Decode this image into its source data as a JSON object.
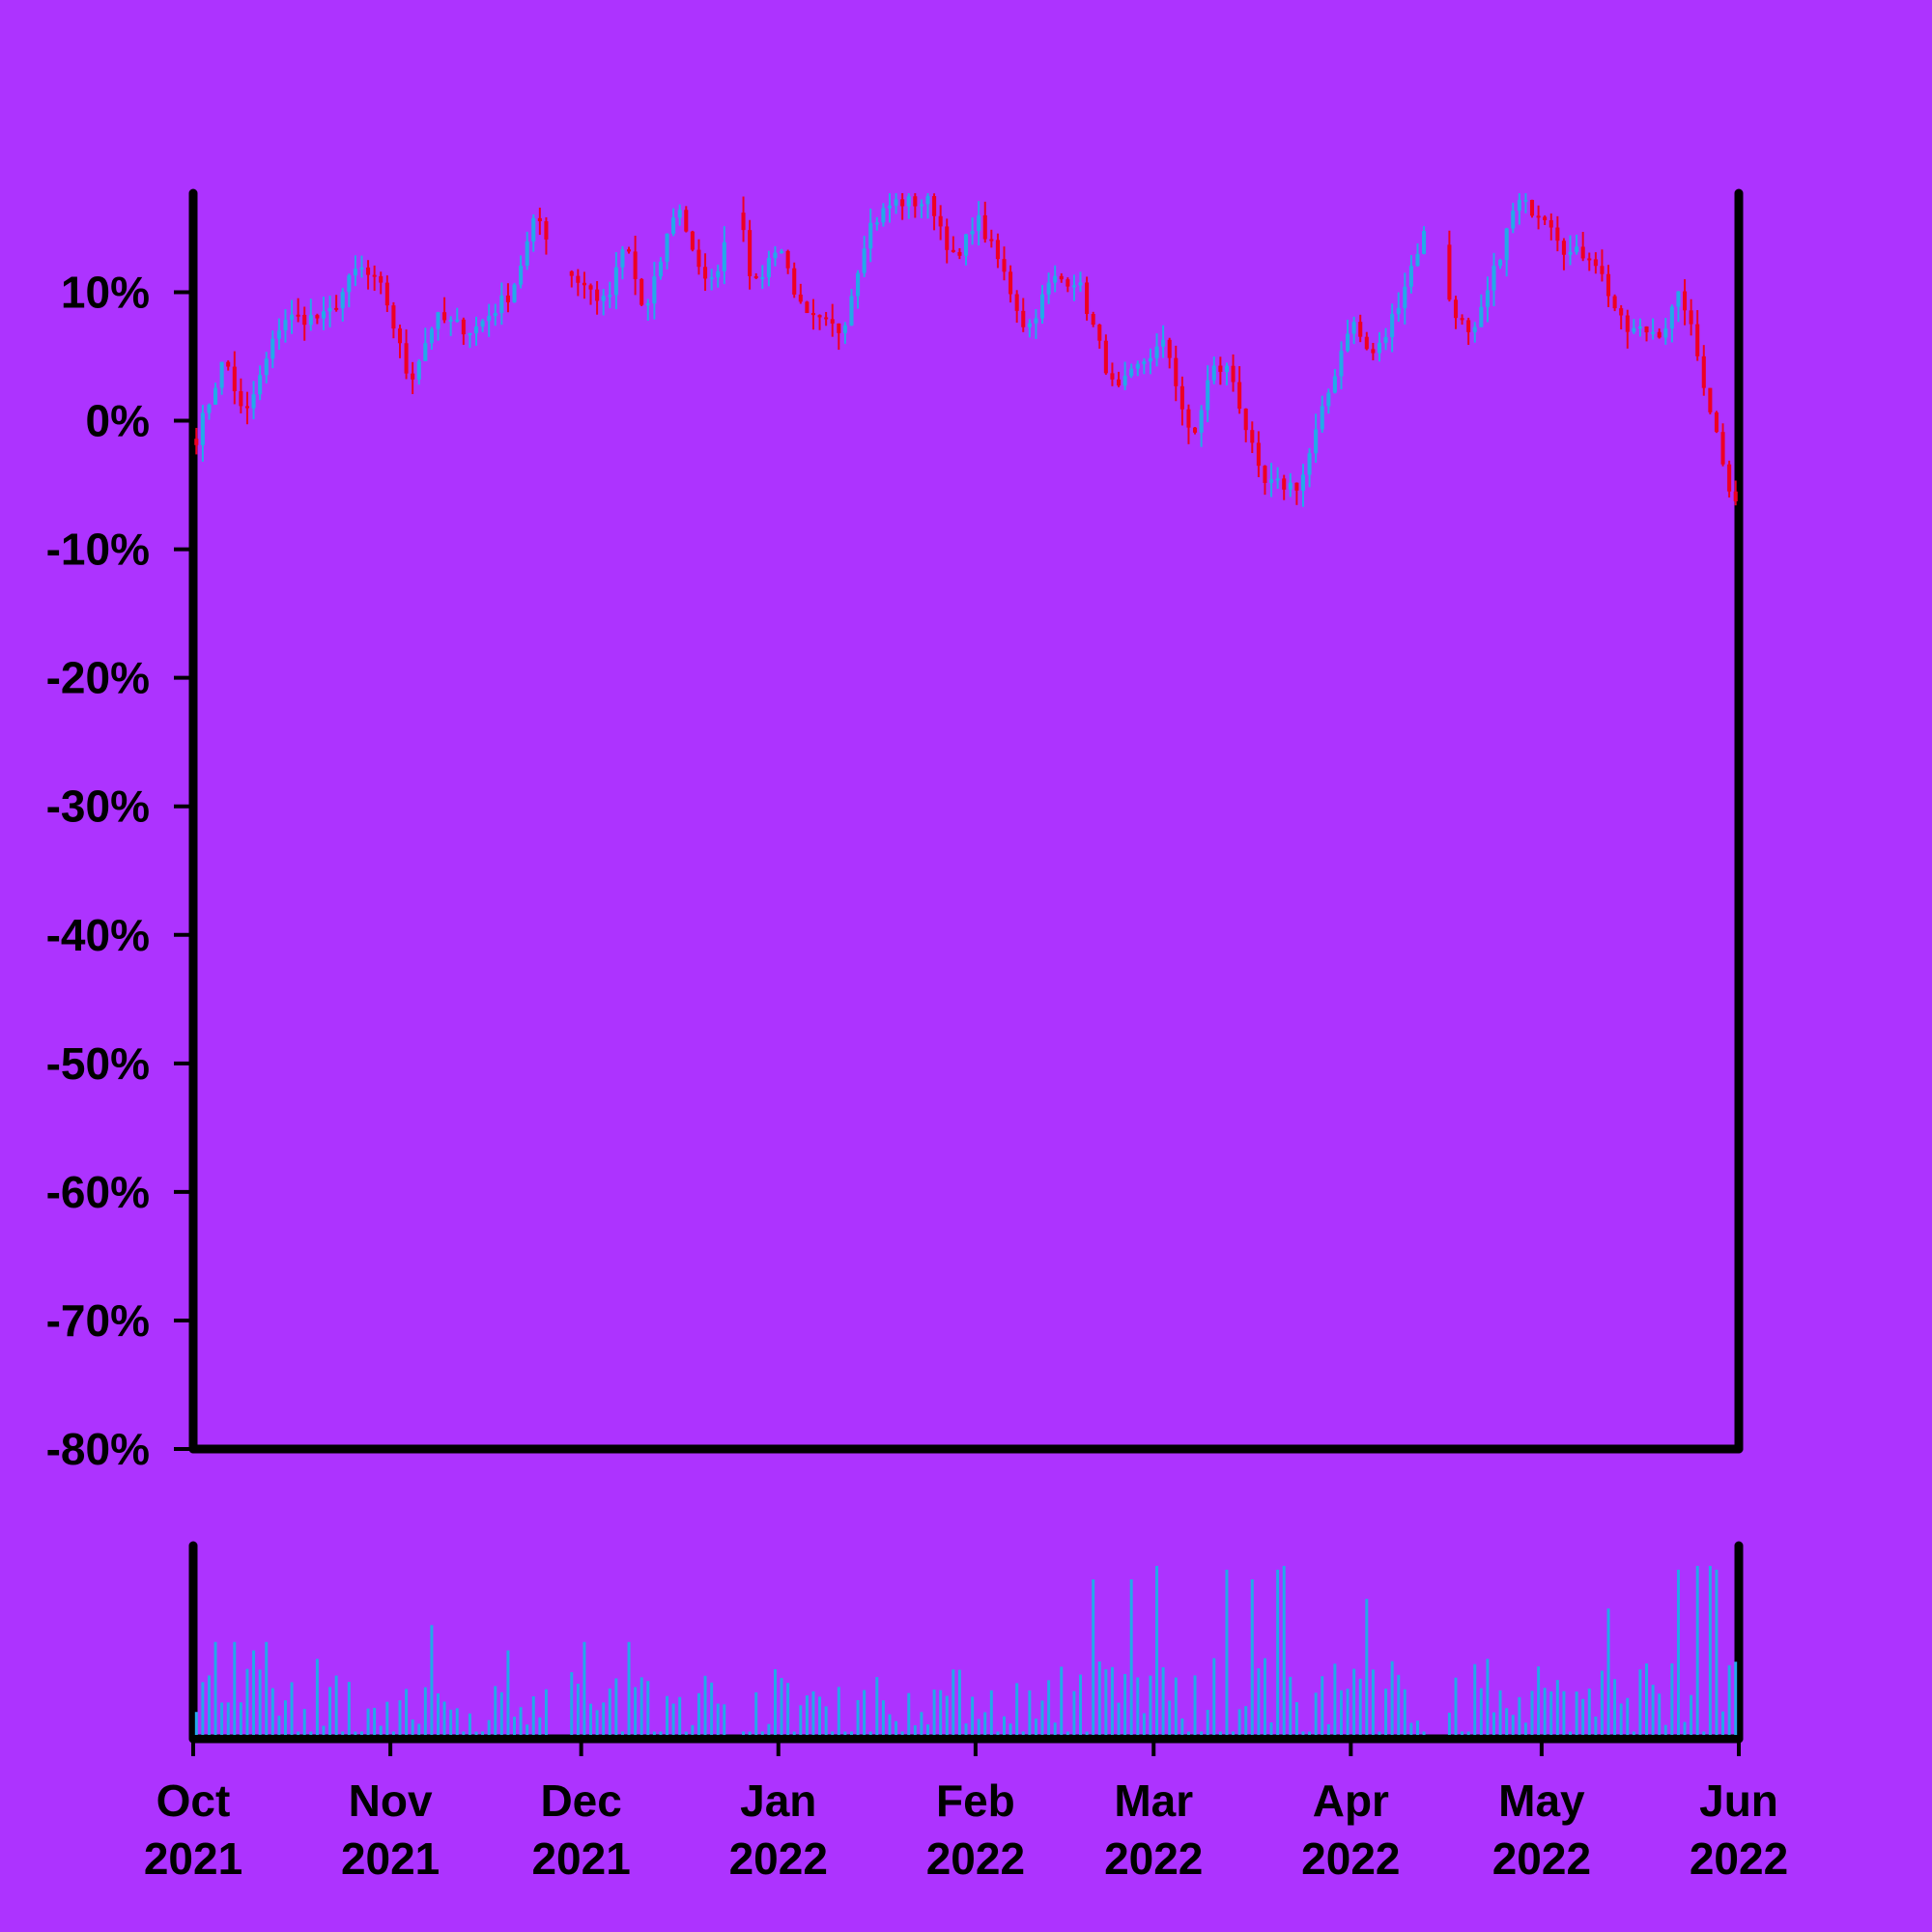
{
  "colors": {
    "background": "#ad33ff",
    "axis": "#000000",
    "up": "#22aae8",
    "down": "#ee0022",
    "volume": "#22aae8"
  },
  "chart_data": {
    "type": "candlestick",
    "price_axis": {
      "ylim": [
        -80,
        17.7
      ],
      "ticks": [
        10,
        0,
        -10,
        -20,
        -30,
        -40,
        -50,
        -60,
        -70,
        -80
      ],
      "tick_labels": [
        "10%",
        "0%",
        "-10%",
        "-20%",
        "-30%",
        "-40%",
        "-50%",
        "-60%",
        "-70%",
        "-80%"
      ]
    },
    "x_axis": {
      "range": [
        "2021-10-01",
        "2022-06-01"
      ],
      "ticks": [
        {
          "date": "2021-10-01",
          "month": "Oct",
          "year": "2021"
        },
        {
          "date": "2021-11-01",
          "month": "Nov",
          "year": "2021"
        },
        {
          "date": "2021-12-01",
          "month": "Dec",
          "year": "2021"
        },
        {
          "date": "2022-01-01",
          "month": "Jan",
          "year": "2022"
        },
        {
          "date": "2022-02-01",
          "month": "Feb",
          "year": "2022"
        },
        {
          "date": "2022-03-01",
          "month": "Mar",
          "year": "2022"
        },
        {
          "date": "2022-04-01",
          "month": "Apr",
          "year": "2022"
        },
        {
          "date": "2022-05-01",
          "month": "May",
          "year": "2022"
        },
        {
          "date": "2022-06-01",
          "month": "Jun",
          "year": "2022"
        }
      ]
    },
    "close_path": [
      [
        "2021-10-01",
        -2
      ],
      [
        "2021-10-06",
        5
      ],
      [
        "2021-10-09",
        0
      ],
      [
        "2021-10-15",
        8
      ],
      [
        "2021-10-22",
        8
      ],
      [
        "2021-10-27",
        12
      ],
      [
        "2021-10-31",
        10
      ],
      [
        "2021-11-04",
        3
      ],
      [
        "2021-11-08",
        8
      ],
      [
        "2021-11-14",
        7
      ],
      [
        "2021-11-20",
        10
      ],
      [
        "2021-11-24",
        16
      ],
      [
        "2021-11-28",
        12
      ],
      [
        "2021-12-05",
        9
      ],
      [
        "2021-12-08",
        14
      ],
      [
        "2021-12-11",
        8
      ],
      [
        "2021-12-16",
        17
      ],
      [
        "2021-12-21",
        10
      ],
      [
        "2021-12-26",
        17
      ],
      [
        "2021-12-28",
        10
      ],
      [
        "2022-01-01",
        14
      ],
      [
        "2022-01-05",
        8
      ],
      [
        "2022-01-11",
        7
      ],
      [
        "2022-01-15",
        15
      ],
      [
        "2022-01-19",
        17
      ],
      [
        "2022-01-25",
        17
      ],
      [
        "2022-01-29",
        12
      ],
      [
        "2022-02-01",
        16
      ],
      [
        "2022-02-05",
        12
      ],
      [
        "2022-02-09",
        7
      ],
      [
        "2022-02-13",
        11
      ],
      [
        "2022-02-17",
        11
      ],
      [
        "2022-02-23",
        2
      ],
      [
        "2022-02-28",
        5
      ],
      [
        "2022-03-03",
        6
      ],
      [
        "2022-03-07",
        -2
      ],
      [
        "2022-03-10",
        4
      ],
      [
        "2022-03-13",
        4
      ],
      [
        "2022-03-18",
        -5
      ],
      [
        "2022-03-24",
        -5
      ],
      [
        "2022-03-29",
        3
      ],
      [
        "2022-04-01",
        8
      ],
      [
        "2022-04-04",
        5
      ],
      [
        "2022-04-06",
        6
      ],
      [
        "2022-04-12",
        14
      ],
      [
        "2022-04-15",
        17
      ],
      [
        "2022-04-16",
        10
      ],
      [
        "2022-04-20",
        6
      ],
      [
        "2022-04-27",
        17
      ],
      [
        "2022-05-02",
        16
      ],
      [
        "2022-05-05",
        13
      ],
      [
        "2022-05-09",
        13
      ],
      [
        "2022-05-14",
        7
      ],
      [
        "2022-05-20",
        7
      ],
      [
        "2022-05-23",
        10
      ],
      [
        "2022-05-31",
        -6
      ]
    ],
    "gaps": [
      [
        "2021-11-26",
        "2021-11-29"
      ],
      [
        "2021-12-24",
        "2021-12-26"
      ],
      [
        "2022-04-13",
        "2022-04-16"
      ]
    ],
    "volume_spikes": [
      [
        "2021-10-04",
        0.55
      ],
      [
        "2021-10-07",
        0.55
      ],
      [
        "2021-10-10",
        0.5
      ],
      [
        "2021-10-12",
        0.55
      ],
      [
        "2021-10-20",
        0.45
      ],
      [
        "2021-11-01",
        0.55
      ],
      [
        "2021-11-07",
        0.65
      ],
      [
        "2021-11-19",
        0.5
      ],
      [
        "2021-12-01",
        0.55
      ],
      [
        "2021-12-08",
        0.55
      ],
      [
        "2022-01-15",
        0.45
      ],
      [
        "2022-02-15",
        0.65
      ],
      [
        "2022-02-19",
        0.8
      ],
      [
        "2022-02-25",
        0.8
      ],
      [
        "2022-03-01",
        0.9
      ],
      [
        "2022-03-12",
        0.85
      ],
      [
        "2022-03-16",
        0.8
      ],
      [
        "2022-03-20",
        0.85
      ],
      [
        "2022-03-21",
        1.0
      ],
      [
        "2022-03-25",
        0.75
      ],
      [
        "2022-04-03",
        0.7
      ],
      [
        "2022-05-11",
        0.65
      ],
      [
        "2022-05-22",
        0.85
      ],
      [
        "2022-05-25",
        1.0
      ],
      [
        "2022-05-27",
        0.9
      ],
      [
        "2022-05-28",
        0.85
      ]
    ]
  }
}
